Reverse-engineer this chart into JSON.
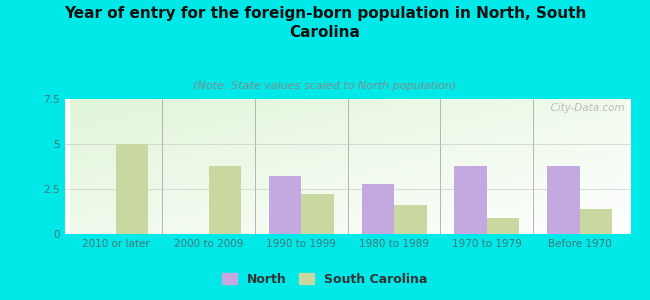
{
  "title": "Year of entry for the foreign-born population in North, South\nCarolina",
  "subtitle": "(Note: State values scaled to North population)",
  "categories": [
    "2010 or later",
    "2000 to 2009",
    "1990 to 1999",
    "1980 to 1989",
    "1970 to 1979",
    "Before 1970"
  ],
  "north_values": [
    0,
    0,
    3.2,
    2.8,
    3.8,
    3.8
  ],
  "sc_values": [
    5.0,
    3.8,
    2.2,
    1.6,
    0.9,
    1.4
  ],
  "north_color": "#c4a8e0",
  "sc_color": "#c8d8a0",
  "ylim": [
    0,
    7.5
  ],
  "yticks": [
    0,
    2.5,
    5,
    7.5
  ],
  "background_color": "#00e8e8",
  "bar_width": 0.35,
  "title_fontsize": 11,
  "subtitle_fontsize": 8,
  "tick_fontsize": 7.5,
  "legend_fontsize": 9,
  "watermark": "  City-Data.com"
}
